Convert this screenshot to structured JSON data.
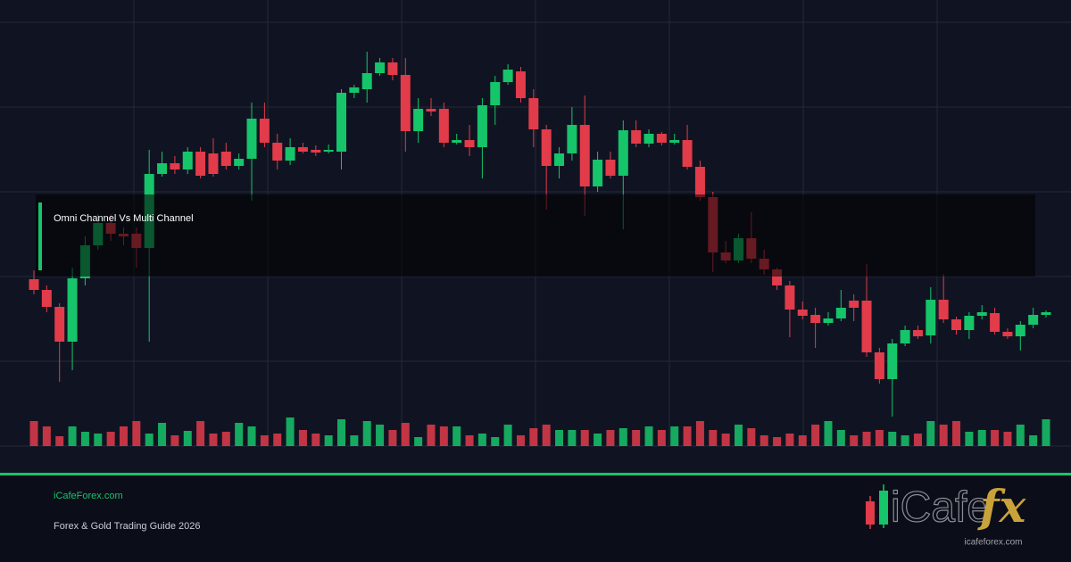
{
  "chart_data": {
    "type": "candlestick",
    "open": [
      187,
      175,
      156,
      117,
      188,
      225,
      250,
      238,
      238,
      222,
      305,
      317,
      310,
      330,
      328,
      330,
      314,
      322,
      367,
      340,
      320,
      335,
      332,
      330,
      330,
      396,
      400,
      418,
      430,
      416,
      353,
      378,
      378,
      340,
      343,
      335,
      382,
      408,
      420,
      390,
      355,
      314,
      328,
      360,
      291,
      321,
      303,
      354,
      339,
      350,
      340,
      343,
      313,
      279,
      217,
      208,
      233,
      210,
      198,
      180,
      153,
      147,
      138,
      143,
      163,
      163,
      105,
      75,
      115,
      130,
      124,
      164,
      142,
      130,
      146,
      149,
      128,
      123,
      136,
      147
    ],
    "high": [
      197,
      180,
      160,
      200,
      235,
      260,
      260,
      245,
      245,
      332,
      330,
      325,
      335,
      335,
      345,
      340,
      328,
      385,
      385,
      350,
      345,
      340,
      337,
      338,
      400,
      405,
      442,
      435,
      435,
      435,
      390,
      390,
      385,
      350,
      360,
      390,
      415,
      428,
      425,
      400,
      360,
      335,
      380,
      393,
      330,
      330,
      365,
      365,
      355,
      352,
      350,
      360,
      320,
      285,
      230,
      238,
      262,
      220,
      200,
      185,
      162,
      155,
      150,
      175,
      170,
      204,
      110,
      120,
      135,
      135,
      178,
      193,
      145,
      150,
      158,
      155,
      132,
      140,
      155,
      152
    ],
    "low": [
      170,
      150,
      72,
      85,
      180,
      220,
      230,
      225,
      200,
      117,
      302,
      305,
      305,
      300,
      302,
      310,
      310,
      275,
      335,
      310,
      315,
      328,
      325,
      328,
      310,
      390,
      385,
      415,
      410,
      330,
      340,
      370,
      335,
      338,
      325,
      300,
      360,
      405,
      385,
      335,
      265,
      300,
      320,
      258,
      285,
      300,
      243,
      335,
      335,
      337,
      338,
      310,
      275,
      195,
      205,
      205,
      205,
      192,
      175,
      122,
      142,
      110,
      135,
      140,
      140,
      100,
      70,
      33,
      112,
      120,
      115,
      138,
      125,
      120,
      142,
      125,
      120,
      107,
      132,
      144
    ],
    "close": [
      175,
      156,
      117,
      188,
      225,
      250,
      238,
      235,
      222,
      305,
      317,
      310,
      330,
      303,
      305,
      314,
      322,
      367,
      340,
      320,
      335,
      330,
      329,
      332,
      396,
      402,
      418,
      430,
      416,
      353,
      378,
      375,
      340,
      343,
      335,
      382,
      408,
      422,
      390,
      355,
      314,
      328,
      360,
      291,
      321,
      303,
      354,
      339,
      350,
      340,
      343,
      313,
      279,
      217,
      208,
      233,
      210,
      198,
      180,
      153,
      146,
      138,
      143,
      155,
      155,
      105,
      75,
      115,
      130,
      123,
      164,
      142,
      130,
      146,
      150,
      128,
      123,
      136,
      147,
      150
    ],
    "volume": [
      28,
      22,
      11,
      22,
      16,
      14,
      16,
      22,
      28,
      14,
      26,
      12,
      17,
      28,
      14,
      16,
      26,
      22,
      12,
      14,
      32,
      18,
      14,
      12,
      30,
      12,
      28,
      24,
      18,
      26,
      10,
      24,
      22,
      22,
      12,
      14,
      10,
      24,
      12,
      20,
      24,
      18,
      18,
      18,
      14,
      18,
      20,
      18,
      22,
      18,
      22,
      22,
      28,
      18,
      14,
      24,
      20,
      12,
      10,
      14,
      12,
      24,
      28,
      18,
      12,
      16,
      18,
      16,
      12,
      14,
      28,
      24,
      28,
      16,
      18,
      18,
      16,
      24,
      12,
      30
    ],
    "ylim": [
      0,
      500
    ],
    "y2lim": [
      0,
      500
    ],
    "up_color": "#16c46a",
    "down_color": "#e23b4a"
  },
  "overlay_title": "Omni Channel Vs Multi Channel",
  "footer": {
    "site": "iCafeForex.com",
    "subtitle": "Forex & Gold Trading Guide 2026"
  },
  "logo": {
    "brand": "iCafe",
    "fx": "fx",
    "url": "icafeforex.com"
  }
}
